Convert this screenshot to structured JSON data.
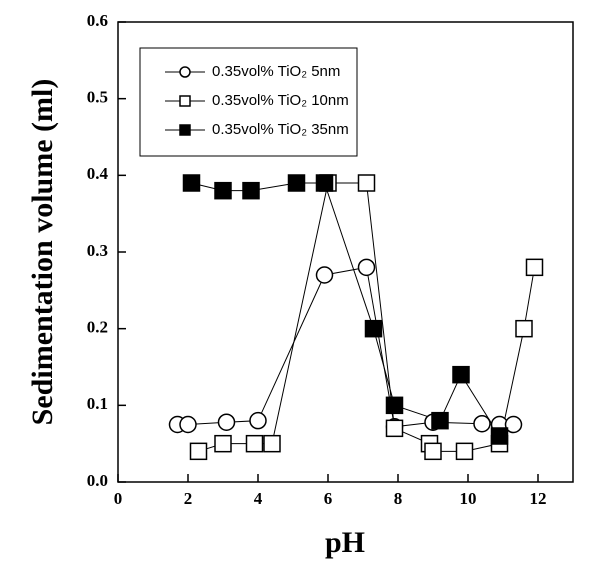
{
  "chart_data": {
    "type": "scatter",
    "xlabel": "pH",
    "ylabel": "Sedimentation volume (ml)",
    "xlim": [
      0,
      13
    ],
    "xticks": [
      0,
      2,
      4,
      6,
      8,
      10,
      12
    ],
    "ylim": [
      0,
      0.6
    ],
    "yticks": [
      {
        "value": 0,
        "label": "0.0"
      },
      0.1,
      0.2,
      0.3,
      0.4,
      0.5,
      0.6
    ],
    "legend": "upper left",
    "series": [
      {
        "name": "0.35vol% TiO₂ 5nm",
        "color": "#000000",
        "marker": "circle",
        "filled": false,
        "x": [
          1.7,
          2.0,
          3.1,
          4.0,
          5.9,
          7.1,
          7.9,
          9.0,
          10.4,
          10.9,
          11.3
        ],
        "values": [
          0.075,
          0.075,
          0.078,
          0.08,
          0.27,
          0.28,
          0.072,
          0.078,
          0.076,
          0.075,
          0.075
        ]
      },
      {
        "name": "0.35vol% TiO₂ 10nm",
        "color": "#000000",
        "marker": "square",
        "filled": false,
        "x": [
          2.3,
          3.0,
          3.9,
          4.4,
          6.0,
          7.1,
          7.9,
          8.9,
          9.0,
          9.9,
          10.9,
          11.6,
          11.9
        ],
        "values": [
          0.04,
          0.05,
          0.05,
          0.05,
          0.39,
          0.39,
          0.07,
          0.05,
          0.04,
          0.04,
          0.05,
          0.2,
          0.28
        ]
      },
      {
        "name": "0.35vol% TiO₂ 35nm",
        "color": "#000000",
        "marker": "square",
        "filled": true,
        "x": [
          2.1,
          3.0,
          3.8,
          5.1,
          5.9,
          7.3,
          7.9,
          9.2,
          9.8,
          10.9
        ],
        "values": [
          0.39,
          0.38,
          0.38,
          0.39,
          0.39,
          0.2,
          0.1,
          0.08,
          0.14,
          0.06
        ]
      }
    ]
  }
}
